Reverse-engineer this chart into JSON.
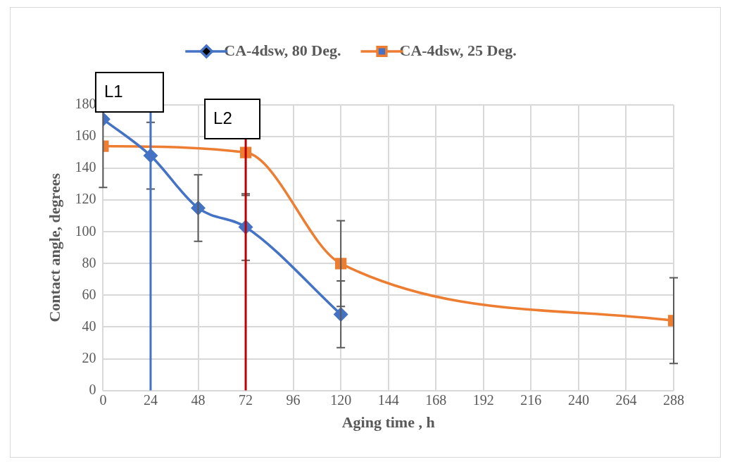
{
  "chart_data": {
    "type": "line",
    "xlabel": "Aging time , h",
    "ylabel": "Contact angle, degrees",
    "xlim": [
      0,
      288
    ],
    "xticks": [
      0,
      24,
      48,
      72,
      96,
      120,
      144,
      168,
      192,
      216,
      240,
      264,
      288
    ],
    "ylim": [
      0,
      180
    ],
    "yticks": [
      0,
      20,
      40,
      60,
      80,
      100,
      120,
      140,
      160,
      180
    ],
    "grid": true,
    "legend": "top",
    "series": [
      {
        "name": "CA-4dsw, 80 Deg.",
        "color": "#4472c4",
        "marker": "diamond",
        "x": [
          0,
          24,
          48,
          72,
          120
        ],
        "values": [
          171,
          148,
          115,
          103,
          48
        ],
        "errors": [
          null,
          21,
          21,
          21,
          21
        ]
      },
      {
        "name": "CA-4dsw, 25 Deg.",
        "color": "#ed7d31",
        "marker": "square",
        "x": [
          0,
          72,
          120,
          288
        ],
        "values": [
          154,
          150,
          80,
          44
        ],
        "errors": [
          26,
          27,
          27,
          27
        ]
      }
    ],
    "ref_lines": [
      {
        "axis": "x",
        "value": 24,
        "label": "L1",
        "color": "#4472c4"
      },
      {
        "axis": "x",
        "value": 72,
        "label": "L2",
        "color": "#c00000"
      }
    ]
  }
}
